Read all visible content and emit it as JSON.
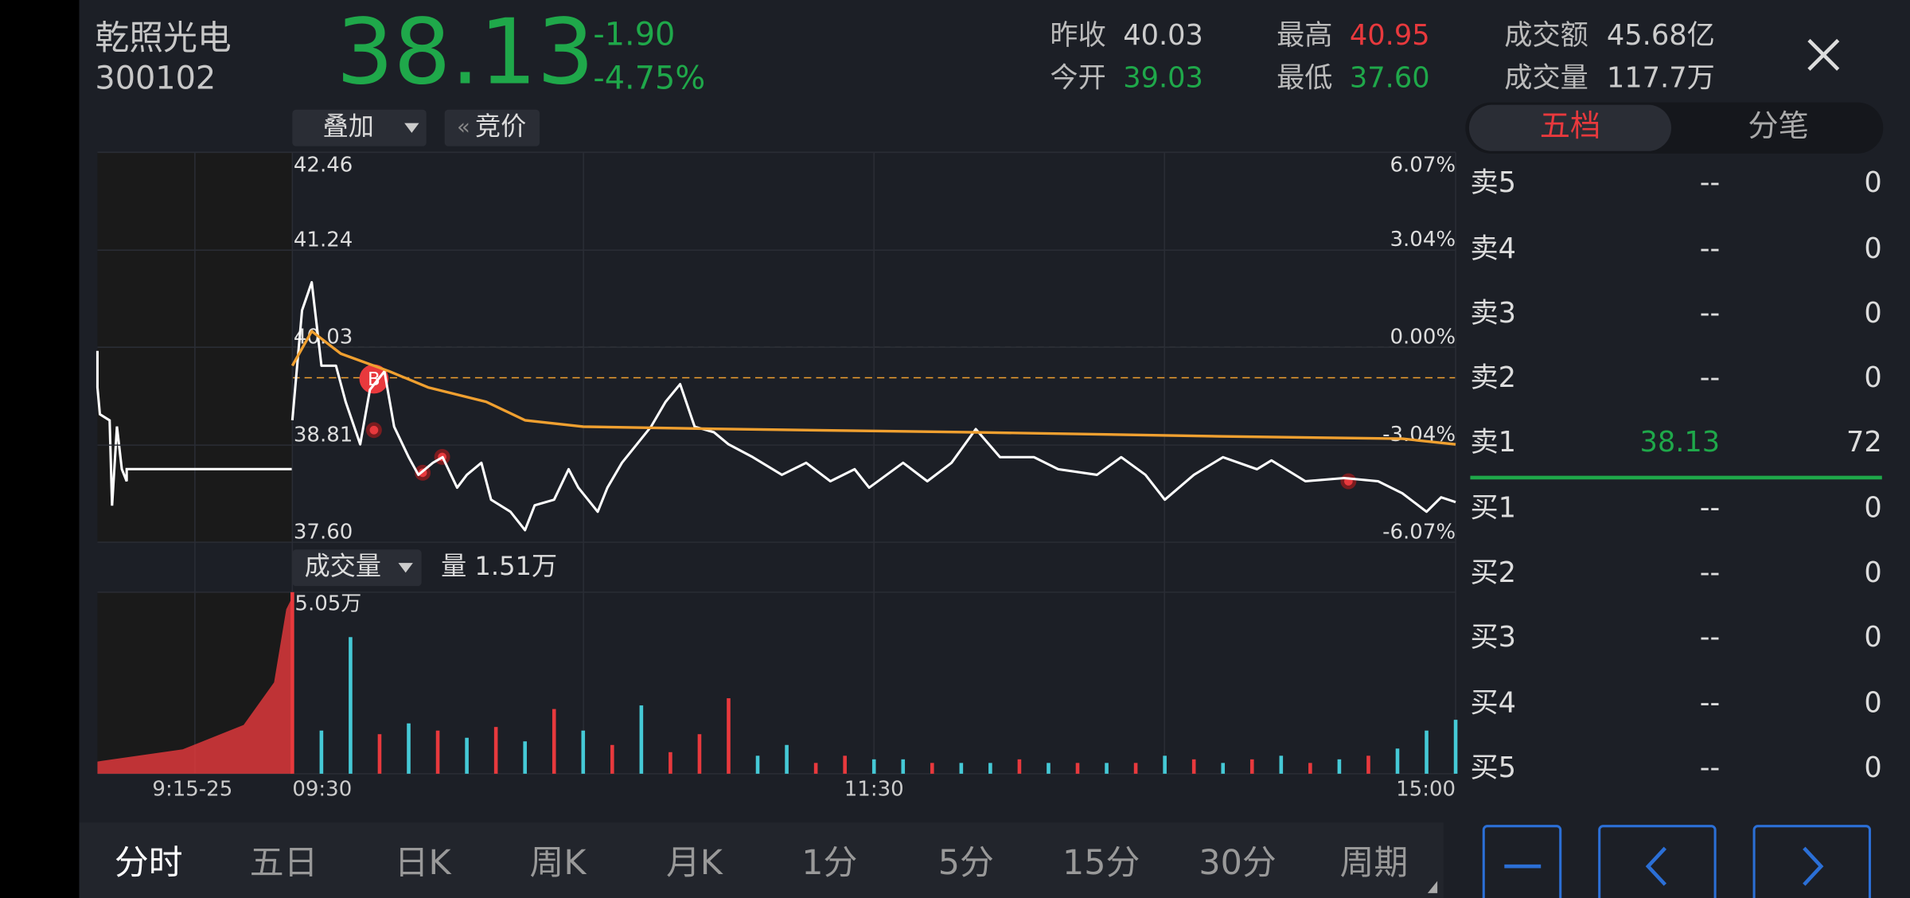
{
  "header": {
    "name": "乾照光电",
    "code": "300102",
    "price": "38.13",
    "change": "-1.90",
    "change_pct": "-4.75%"
  },
  "stats": [
    {
      "label": "昨收",
      "value": "40.03"
    },
    {
      "label": "今开",
      "value": "39.03"
    },
    {
      "label": "最高",
      "value": "40.95"
    },
    {
      "label": "最低",
      "value": "37.60"
    },
    {
      "label": "成交额",
      "value": "45.68亿"
    },
    {
      "label": "成交量",
      "value": "117.7万"
    }
  ],
  "toolbar": {
    "overlay": "叠加",
    "auction": "竞价"
  },
  "chart_data": [
    {
      "type": "line",
      "premarket_label": "9:15-25",
      "xlim": [
        0,
        240
      ],
      "xticks": [
        {
          "value": 0,
          "label": "09:30"
        },
        {
          "value": 120,
          "label": "11:30"
        },
        {
          "value": 240,
          "label": "15:00"
        }
      ],
      "ylim": [
        37.6,
        42.46
      ],
      "yticks": [
        {
          "value": 37.6,
          "label": "37.60"
        },
        38.81,
        40.03,
        41.24,
        42.46
      ],
      "y2lim": [
        -6.07,
        6.07
      ],
      "y2ticks": [
        {
          "value": -6.07,
          "label": "-6.07%"
        },
        {
          "value": -3.04,
          "label": "-3.04%"
        },
        {
          "value": 0,
          "label": "0.00%"
        },
        {
          "value": 3.04,
          "label": "3.04%"
        },
        {
          "value": 6.07,
          "label": "6.07%"
        }
      ],
      "grid": true,
      "series": [
        {
          "color": "#ffffff",
          "x": [
            0,
            2,
            4,
            6,
            9,
            11,
            14,
            16,
            19,
            21,
            24,
            26,
            29,
            31,
            34,
            36,
            39,
            41,
            45,
            48,
            50,
            54,
            57,
            59,
            63,
            65,
            68,
            70,
            74,
            77,
            80,
            83,
            87,
            90,
            95,
            101,
            106,
            111,
            116,
            119,
            126,
            131,
            136,
            141,
            146,
            153,
            158,
            166,
            171,
            176,
            180,
            186,
            192,
            199,
            202,
            209,
            217,
            224,
            229,
            234,
            237,
            240
          ],
          "values": [
            39.12,
            40.49,
            40.84,
            39.8,
            39.8,
            39.35,
            38.82,
            39.5,
            39.73,
            39.04,
            38.66,
            38.44,
            38.59,
            38.66,
            38.28,
            38.44,
            38.59,
            38.13,
            37.98,
            37.75,
            38.06,
            38.13,
            38.51,
            38.28,
            37.98,
            38.28,
            38.59,
            38.74,
            39.04,
            39.35,
            39.57,
            39.04,
            38.97,
            38.82,
            38.66,
            38.44,
            38.59,
            38.36,
            38.51,
            38.28,
            38.59,
            38.36,
            38.59,
            39.01,
            38.66,
            38.66,
            38.51,
            38.44,
            38.66,
            38.44,
            38.13,
            38.44,
            38.66,
            38.51,
            38.62,
            38.36,
            38.4,
            38.36,
            38.21,
            37.98,
            38.16,
            38.1
          ]
        },
        {
          "color": "#f0a030",
          "x": [
            0,
            4,
            10,
            20,
            28,
            40,
            48,
            60,
            90,
            141,
            191,
            229,
            240
          ],
          "values": [
            39.8,
            40.23,
            39.95,
            39.73,
            39.53,
            39.35,
            39.12,
            39.04,
            39.01,
            38.97,
            38.92,
            38.89,
            38.82
          ]
        }
      ]
    },
    {
      "type": "bar",
      "label": "成交量",
      "current_label": "量 1.51万",
      "xlim": [
        0,
        240
      ],
      "ylim": [
        0,
        5.05
      ],
      "yticks": [
        {
          "value": 5.05,
          "label": "5.05万"
        }
      ],
      "x": [
        0,
        6,
        12,
        18,
        24,
        30,
        36,
        42,
        48,
        54,
        60,
        66,
        72,
        78,
        84,
        90,
        96,
        102,
        108,
        114,
        120,
        126,
        132,
        138,
        144,
        150,
        156,
        162,
        168,
        174,
        180,
        186,
        192,
        198,
        204,
        210,
        216,
        222,
        228,
        234,
        240
      ],
      "values": [
        5.05,
        1.2,
        3.8,
        1.1,
        1.4,
        1.2,
        1.0,
        1.3,
        0.9,
        1.8,
        1.2,
        0.8,
        1.9,
        0.6,
        1.1,
        2.1,
        0.5,
        0.8,
        0.3,
        0.5,
        0.4,
        0.4,
        0.3,
        0.3,
        0.3,
        0.4,
        0.3,
        0.3,
        0.3,
        0.3,
        0.5,
        0.4,
        0.3,
        0.4,
        0.5,
        0.3,
        0.4,
        0.5,
        0.7,
        1.2,
        1.5
      ],
      "colors": [
        "#e8393d",
        "#45c9d6",
        "#45c9d6",
        "#e8393d",
        "#45c9d6",
        "#e8393d",
        "#45c9d6",
        "#e8393d",
        "#45c9d6",
        "#e8393d",
        "#45c9d6",
        "#e8393d",
        "#45c9d6",
        "#e8393d",
        "#e8393d",
        "#e8393d",
        "#45c9d6",
        "#45c9d6",
        "#e8393d",
        "#e8393d",
        "#45c9d6",
        "#45c9d6",
        "#e8393d",
        "#45c9d6",
        "#45c9d6",
        "#e8393d",
        "#45c9d6",
        "#e8393d",
        "#45c9d6",
        "#e8393d",
        "#45c9d6",
        "#e8393d",
        "#45c9d6",
        "#e8393d",
        "#45c9d6",
        "#e8393d",
        "#45c9d6",
        "#e8393d",
        "#45c9d6",
        "#45c9d6",
        "#45c9d6"
      ]
    }
  ],
  "order_book": {
    "tabs": [
      "五档",
      "分笔"
    ],
    "rows": [
      {
        "label": "卖5",
        "price": "--",
        "volume": "0"
      },
      {
        "label": "卖4",
        "price": "--",
        "volume": "0"
      },
      {
        "label": "卖3",
        "price": "--",
        "volume": "0"
      },
      {
        "label": "卖2",
        "price": "--",
        "volume": "0"
      },
      {
        "label": "卖1",
        "price": "38.13",
        "volume": "72"
      },
      {
        "label": "买1",
        "price": "--",
        "volume": "0"
      },
      {
        "label": "买2",
        "price": "--",
        "volume": "0"
      },
      {
        "label": "买3",
        "price": "--",
        "volume": "0"
      },
      {
        "label": "买4",
        "price": "--",
        "volume": "0"
      },
      {
        "label": "买5",
        "price": "--",
        "volume": "0"
      }
    ]
  },
  "period_tabs": [
    "分时",
    "五日",
    "日K",
    "周K",
    "月K",
    "1分",
    "5分",
    "15分",
    "30分",
    "周期"
  ]
}
